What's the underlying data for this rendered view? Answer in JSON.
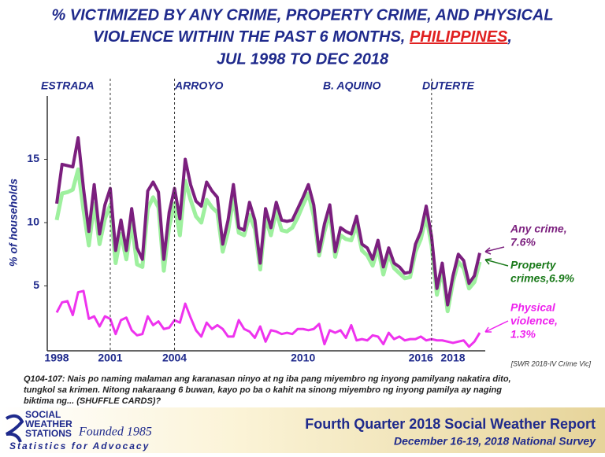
{
  "chart_data": {
    "type": "line",
    "title": [
      "% VICTIMIZED BY ANY CRIME, PROPERTY CRIME, AND PHYSICAL",
      "VIOLENCE WITHIN THE PAST 6 MONTHS, ",
      "PHILIPPINES",
      ",",
      "JUL 1998 TO DEC 2018"
    ],
    "presidents": [
      "ESTRADA",
      "ARROYO",
      "B. AQUINO",
      "DUTERTE"
    ],
    "y_label": "% of households",
    "categories": [
      "1998",
      null,
      null,
      null,
      null,
      null,
      null,
      null,
      null,
      null,
      "2001",
      null,
      null,
      null,
      null,
      null,
      null,
      null,
      null,
      null,
      null,
      null,
      "2004",
      null,
      null,
      null,
      null,
      null,
      null,
      null,
      null,
      null,
      null,
      null,
      null,
      null,
      null,
      null,
      null,
      null,
      null,
      null,
      null,
      null,
      null,
      null,
      "2010",
      null,
      null,
      null,
      null,
      null,
      null,
      null,
      null,
      null,
      null,
      null,
      null,
      null,
      null,
      null,
      null,
      null,
      null,
      null,
      null,
      null,
      "2016",
      null,
      null,
      null,
      null,
      null,
      "2018",
      null,
      null,
      null,
      null,
      null
    ],
    "series": [
      {
        "name": [
          "Any crime,",
          "7.6%"
        ],
        "color": "#7b1f7e",
        "label_color": "#7b1f7e",
        "width": 4,
        "values": [
          11.5,
          14.6,
          14.5,
          14.4,
          16.7,
          12.7,
          9.3,
          13,
          9.1,
          11.4,
          12.7,
          7.8,
          10.2,
          7.8,
          11.1,
          8,
          7.1,
          12.5,
          13.2,
          12.4,
          7.1,
          10.8,
          12.7,
          10.3,
          15,
          13,
          11.7,
          11.3,
          13.2,
          12.5,
          12,
          8.3,
          10.2,
          13,
          9.6,
          9.4,
          11.6,
          10.2,
          6.8,
          11.1,
          9.6,
          11.6,
          10.2,
          10.1,
          10.2,
          11.1,
          12,
          13,
          11.4,
          7.7,
          9.9,
          11.4,
          7.7,
          9.6,
          9.3,
          9.1,
          10.5,
          8.3,
          8,
          7.1,
          8.6,
          6.5,
          8,
          6.8,
          6.5,
          6,
          6.1,
          8.3,
          9.3,
          11.3,
          8.9,
          4.8,
          6.8,
          3.5,
          5.8,
          7.5,
          7,
          5.2,
          5.8,
          7.6
        ]
      },
      {
        "name": [
          "Property",
          "crimes,6.9%"
        ],
        "color": "#9ef09e",
        "label_color": "#1a7a1a",
        "width": 5,
        "values": [
          10.2,
          12.3,
          12.4,
          12.6,
          14.2,
          11,
          8.2,
          11.5,
          8.3,
          10.3,
          11.4,
          6.8,
          9.1,
          7.1,
          10,
          6.7,
          6.5,
          11.1,
          12,
          11.2,
          6.2,
          9.7,
          11.5,
          9,
          13.3,
          11.8,
          10.5,
          10,
          11.8,
          11.2,
          10.8,
          7.7,
          9.3,
          12,
          9.2,
          9,
          10.6,
          9.5,
          6.3,
          10.4,
          9,
          10.9,
          9.4,
          9.3,
          9.6,
          10.4,
          11.4,
          12.3,
          10.5,
          7.4,
          9.3,
          10.8,
          7.3,
          9,
          8.7,
          8.6,
          9.8,
          7.8,
          7.4,
          6.6,
          8,
          5.9,
          7.5,
          6.4,
          6,
          5.6,
          5.7,
          7.7,
          8.7,
          10.5,
          8.2,
          4.3,
          6.3,
          3,
          5.3,
          6.9,
          6.4,
          4.8,
          5.3,
          6.9
        ]
      },
      {
        "name": [
          "Physical",
          "violence,",
          "1.3%"
        ],
        "color": "#ee33ee",
        "label_color": "#ee22ee",
        "width": 3,
        "values": [
          2.9,
          3.7,
          3.8,
          2.7,
          4.5,
          4.6,
          2.4,
          2.6,
          1.8,
          2.6,
          2.4,
          1.2,
          2.3,
          2.5,
          1.5,
          1.1,
          1.2,
          2.6,
          1.9,
          2.2,
          1.6,
          1.7,
          2.3,
          2.1,
          3.6,
          2.5,
          1.5,
          1,
          2.1,
          1.6,
          1.9,
          1.6,
          1,
          1,
          2.3,
          1.6,
          1.4,
          0.9,
          1.8,
          0.6,
          1.5,
          1.4,
          1.2,
          1.3,
          1.2,
          1.6,
          1.6,
          1.5,
          1.6,
          2,
          0.4,
          1.5,
          1.3,
          1.5,
          0.9,
          1.9,
          0.7,
          0.8,
          0.7,
          1.1,
          1,
          0.4,
          1.3,
          0.8,
          1,
          0.7,
          0.8,
          0.8,
          1,
          0.7,
          0.8,
          0.7,
          0.7,
          0.6,
          0.5,
          0.6,
          0.7,
          0.2,
          0.6,
          1.3
        ]
      }
    ],
    "ylim": [
      0,
      20
    ],
    "yticks": [
      5,
      10,
      15
    ],
    "source": "[SWR 2018-IV Crime Vic]",
    "question": [
      "Q104-107: Nais po naming malaman ang karanasan ninyo at ng iba pang miyembro ng inyong pamilyang nakatira dito,",
      "tungkol sa krimen. Nitong nakaraang 6 buwan, kayo po ba o kahit na sinong miyembro ng inyong pamilya ay naging",
      "biktima ng... (SHUFFLE CARDS)?"
    ],
    "logo": [
      "SOCIAL",
      "WEATHER",
      "STATIONS",
      "Founded 1985",
      "Statistics for Advocacy"
    ],
    "footer": [
      "Fourth Quarter 2018 Social Weather Report",
      "December 16-19, 2018 National Survey"
    ]
  }
}
